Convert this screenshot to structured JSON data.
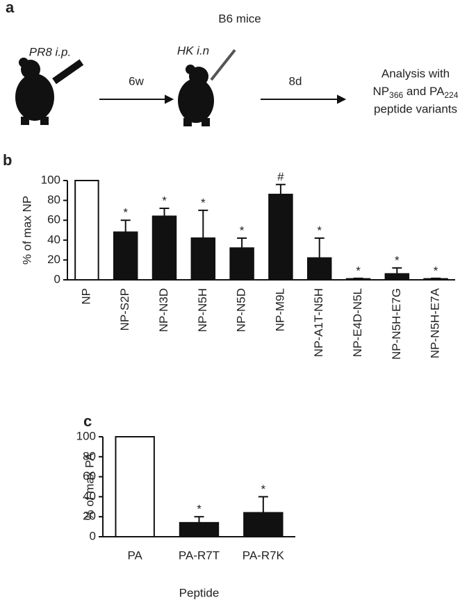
{
  "panel_labels": [
    "a",
    "b",
    "c"
  ],
  "diagram": {
    "title": "B6 mice",
    "step1": "PR8 i.p.",
    "interval1": "6w",
    "step2": "HK i.n",
    "interval2": "8d",
    "analysis": {
      "line1": "Analysis with",
      "np": "NP",
      "np_sub": "366",
      "and": " and PA",
      "pa_sub": "224",
      "line3": "peptide variants"
    }
  },
  "chart_data": [
    {
      "type": "bar",
      "ylabel": "% of max NP",
      "categories": [
        "NP",
        "NP-S2P",
        "NP-N3D",
        "NP-N5H",
        "NP-N5D",
        "NP-M9L",
        "NP-A1T-N5H",
        "NP-E4D-N5L",
        "NP-N5H-E7G",
        "NP-N5H-E7A"
      ],
      "values": [
        100,
        48,
        64,
        42,
        32,
        86,
        22,
        1,
        6,
        1
      ],
      "errors": [
        null,
        12,
        8,
        28,
        10,
        10,
        20,
        0.5,
        6,
        0.5
      ],
      "annotations": [
        null,
        "*",
        "*",
        "*",
        "*",
        "#",
        "*",
        "*",
        "*",
        "*"
      ],
      "colors": [
        "#ffffff",
        "#111111",
        "#111111",
        "#111111",
        "#111111",
        "#111111",
        "#111111",
        "#111111",
        "#111111",
        "#111111"
      ],
      "ylim": [
        0,
        100
      ],
      "yticks": [
        0,
        20,
        40,
        60,
        80,
        100
      ]
    },
    {
      "type": "bar",
      "ylabel": "% of max PA",
      "xlabel": "Peptide",
      "categories": [
        "PA",
        "PA-R7T",
        "PA-R7K"
      ],
      "values": [
        100,
        14,
        24
      ],
      "errors": [
        null,
        6,
        16
      ],
      "annotations": [
        null,
        "*",
        "*"
      ],
      "colors": [
        "#ffffff",
        "#111111",
        "#111111"
      ],
      "ylim": [
        0,
        100
      ],
      "yticks": [
        0,
        20,
        40,
        60,
        80,
        100
      ]
    }
  ]
}
